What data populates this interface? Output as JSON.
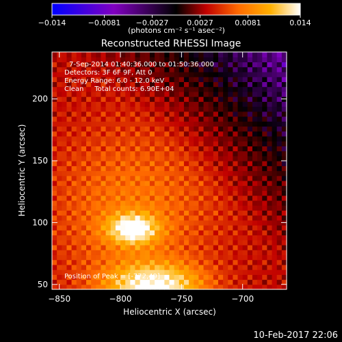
{
  "chart_data": {
    "type": "heatmap",
    "title": "Reconstructed RHESSI Image",
    "xlabel": "Heliocentric X (arcsec)",
    "ylabel": "Heliocentric Y (arcsec)",
    "xlim": [
      -856,
      -664
    ],
    "ylim": [
      46,
      238
    ],
    "x_ticks": [
      -850,
      -800,
      -750,
      -700
    ],
    "y_ticks": [
      50,
      100,
      150,
      200
    ],
    "x_tick_labels": [
      "−850",
      "−800",
      "−750",
      "−700"
    ],
    "y_tick_labels": [
      "50",
      "100",
      "150",
      "200"
    ],
    "colorbar": {
      "range": [
        -0.014,
        0.014
      ],
      "ticks": [
        -0.014,
        -0.0081,
        -0.0027,
        0.0027,
        0.0081,
        0.014
      ],
      "tick_labels": [
        "−0.014",
        "−0.0081",
        "−0.0027",
        "0.0027",
        "0.0081",
        "0.014"
      ],
      "unit_label": "(photons cm⁻² s⁻¹ asec⁻²)",
      "colors": [
        "#0000ff",
        "#8000c0",
        "#000000",
        "#c00000",
        "#ff6a00",
        "#ffb000",
        "#ffffff"
      ]
    },
    "annotations": [
      "7-Sep-2014 01:40:36.000 to 01:50:36.000",
      "Detectors: 3F 6F 9F, Att 0",
      "Energy Range: 6.0 - 12.0 keV",
      "Clean     Total counts: 6.90E+04"
    ],
    "peak_label": "Position of Peak = [-772,49]",
    "peak": {
      "x": -772,
      "y": 49
    },
    "secondary_peak": {
      "x": -790,
      "y": 95
    },
    "grid": false,
    "legend": "none"
  },
  "footer": {
    "timestamp": "10-Feb-2017 22:06"
  }
}
